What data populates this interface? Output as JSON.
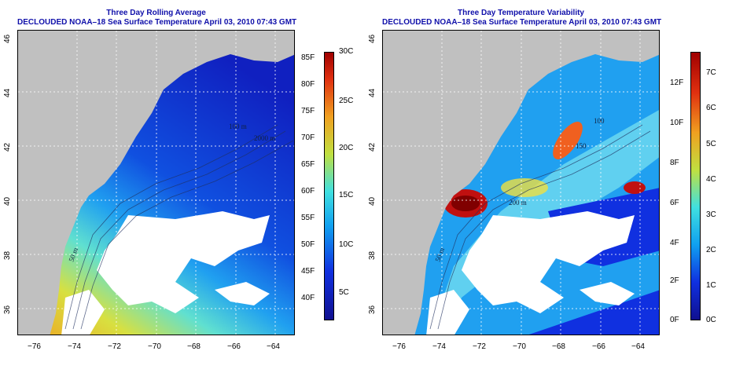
{
  "left_panel": {
    "title_line1": "Three Day Rolling Average",
    "title_line2": "DECLOUDED NOAA–18 Sea Surface Temperature April 03, 2010 07:43 GMT",
    "colorbar_f": [
      "85F",
      "80F",
      "75F",
      "70F",
      "65F",
      "60F",
      "55F",
      "50F",
      "45F",
      "40F"
    ],
    "colorbar_c": [
      "30C",
      "25C",
      "20C",
      "15C",
      "10C",
      "5C"
    ],
    "contour_labels": [
      "100 m",
      "2000 m",
      "50 m"
    ]
  },
  "right_panel": {
    "title_line1": "Three Day Temperature Variability",
    "title_line2": "DECLOUDED NOAA–18 Sea Surface Temperature April 03, 2010 07:43 GMT",
    "colorbar_f": [
      "12F",
      "10F",
      "8F",
      "6F",
      "4F",
      "2F",
      "0F"
    ],
    "colorbar_c": [
      "7C",
      "6C",
      "5C",
      "4C",
      "3C",
      "2C",
      "1C",
      "0C"
    ],
    "contour_labels": [
      "100",
      "150",
      "200 m",
      "50 m"
    ]
  },
  "axes": {
    "x_ticks": [
      "−76",
      "−74",
      "−72",
      "−70",
      "−68",
      "−66",
      "−64"
    ],
    "y_ticks": [
      "46",
      "44",
      "42",
      "40",
      "38",
      "36"
    ]
  },
  "colors": {
    "title": "#1010aa",
    "land": "#c0c0c0",
    "cloud": "#ffffff"
  }
}
